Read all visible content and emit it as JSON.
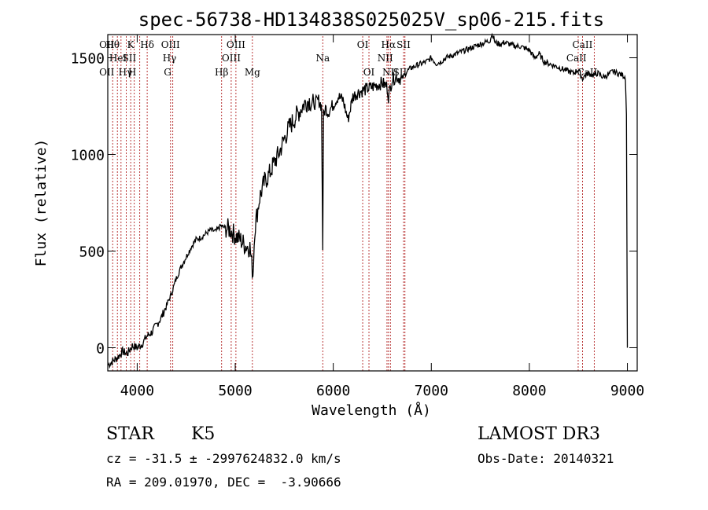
{
  "chart_data": {
    "type": "line",
    "title": "spec-56738-HD134838S025025V_sp06-215.fits",
    "xlabel": "Wavelength (Å)",
    "ylabel": "Flux (relative)",
    "xlim": [
      3700,
      9100
    ],
    "ylim": [
      -120,
      1620
    ],
    "xticks": [
      4000,
      5000,
      6000,
      7000,
      8000,
      9000
    ],
    "yticks": [
      0,
      500,
      1000,
      1500
    ],
    "grid": false,
    "series": [
      {
        "x": [
          3700,
          3750,
          3800,
          3850,
          3900,
          3950,
          4000,
          4050,
          4100,
          4150,
          4200,
          4250,
          4300,
          4350,
          4400,
          4450,
          4500,
          4550,
          4600,
          4650,
          4700,
          4750,
          4800,
          4850,
          4900,
          4950,
          5000,
          5050,
          5100,
          5150,
          5180,
          5200,
          5250,
          5300,
          5350,
          5400,
          5450,
          5500,
          5550,
          5600,
          5650,
          5700,
          5750,
          5800,
          5850,
          5880,
          5893,
          5900,
          5920,
          5950,
          6000,
          6050,
          6100,
          6150,
          6200,
          6250,
          6300,
          6350,
          6400,
          6450,
          6500,
          6550,
          6563,
          6600,
          6650,
          6700,
          6750,
          6800,
          6850,
          6900,
          6950,
          7000,
          7050,
          7100,
          7150,
          7200,
          7250,
          7300,
          7350,
          7400,
          7450,
          7500,
          7550,
          7600,
          7620,
          7650,
          7700,
          7750,
          7800,
          7850,
          7900,
          7950,
          8000,
          8050,
          8100,
          8150,
          8200,
          8250,
          8300,
          8350,
          8400,
          8450,
          8500,
          8542,
          8550,
          8600,
          8650,
          8700,
          8750,
          8800,
          8850,
          8900,
          8950,
          8980,
          8990,
          9000
        ],
        "y": [
          -90,
          -70,
          -50,
          -20,
          -30,
          10,
          0,
          20,
          60,
          80,
          120,
          160,
          220,
          280,
          360,
          420,
          470,
          520,
          560,
          570,
          590,
          610,
          600,
          630,
          620,
          610,
          580,
          560,
          530,
          520,
          380,
          620,
          780,
          860,
          900,
          960,
          1010,
          1080,
          1140,
          1180,
          1220,
          1260,
          1280,
          1260,
          1280,
          1250,
          520,
          1200,
          1240,
          1220,
          1260,
          1300,
          1280,
          1180,
          1300,
          1320,
          1330,
          1340,
          1350,
          1360,
          1370,
          1350,
          1300,
          1390,
          1400,
          1390,
          1430,
          1450,
          1460,
          1470,
          1480,
          1500,
          1470,
          1480,
          1500,
          1510,
          1520,
          1530,
          1540,
          1550,
          1560,
          1570,
          1580,
          1590,
          1630,
          1580,
          1570,
          1580,
          1570,
          1560,
          1560,
          1550,
          1540,
          1500,
          1520,
          1480,
          1470,
          1460,
          1450,
          1440,
          1430,
          1420,
          1440,
          1390,
          1400,
          1420,
          1410,
          1420,
          1400,
          1410,
          1430,
          1420,
          1410,
          1400,
          1200,
          0
        ]
      }
    ],
    "line_markers": [
      {
        "w": 3750,
        "label": "Hθ",
        "row": 0
      },
      {
        "w": 3798,
        "label": "",
        "row": 0
      },
      {
        "w": 3835,
        "label": "",
        "row": 0
      },
      {
        "w": 3889,
        "label": "",
        "row": 0
      },
      {
        "w": 3934,
        "label": "K",
        "row": 0
      },
      {
        "w": 3970,
        "label": "",
        "row": 0
      },
      {
        "w": 4026,
        "label": "",
        "row": 0
      },
      {
        "w": 4102,
        "label": "Hδ",
        "row": 0
      },
      {
        "w": 4340,
        "label": "OIII",
        "row": 0
      },
      {
        "w": 4363,
        "label": "",
        "row": 0
      },
      {
        "w": 4861,
        "label": "Hβ",
        "row": 2
      },
      {
        "w": 4959,
        "label": "OIII",
        "row": 1
      },
      {
        "w": 5007,
        "label": "OIII",
        "row": 0
      },
      {
        "w": 5175,
        "label": "Mg",
        "row": 2
      },
      {
        "w": 5893,
        "label": "Na",
        "row": 1
      },
      {
        "w": 6300,
        "label": "OI",
        "row": 0
      },
      {
        "w": 6364,
        "label": "OI",
        "row": 2
      },
      {
        "w": 6548,
        "label": "",
        "row": 0
      },
      {
        "w": 6563,
        "label": "Hα",
        "row": 0
      },
      {
        "w": 6583,
        "label": "",
        "row": 0
      },
      {
        "w": 6717,
        "label": "SII",
        "row": 0
      },
      {
        "w": 6731,
        "label": "",
        "row": 0
      },
      {
        "w": 8498,
        "label": "",
        "row": 0
      },
      {
        "w": 8542,
        "label": "CaII",
        "row": 0
      },
      {
        "w": 8662,
        "label": "",
        "row": 0
      }
    ],
    "marker_labels_extra": [
      {
        "text": "OII",
        "x": 3690,
        "row": 0
      },
      {
        "text": "OII",
        "x": 3690,
        "row": 2
      },
      {
        "text": "HeI",
        "x": 3805,
        "row": 1
      },
      {
        "text": "SII",
        "x": 3920,
        "row": 1
      },
      {
        "text": "Hγ",
        "x": 3880,
        "row": 2
      },
      {
        "text": "H",
        "x": 3950,
        "row": 2
      },
      {
        "text": "Hγ",
        "x": 4330,
        "row": 1
      },
      {
        "text": "G",
        "x": 4310,
        "row": 2
      },
      {
        "text": "NII",
        "x": 6530,
        "row": 1
      },
      {
        "text": "NII",
        "x": 6580,
        "row": 2
      },
      {
        "text": "SII",
        "x": 6680,
        "row": 2
      },
      {
        "text": "CaII",
        "x": 8480,
        "row": 1
      },
      {
        "text": "CaII",
        "x": 8590,
        "row": 2
      }
    ]
  },
  "info": {
    "class_label": "STAR",
    "subclass": "K5",
    "survey": "LAMOST DR3",
    "cz_line": "cz = -31.5 ± -2997624832.0 km/s",
    "obs_date": "Obs-Date: 20140321",
    "coords_line": "RA = 209.01970, DEC =  -3.90666"
  }
}
